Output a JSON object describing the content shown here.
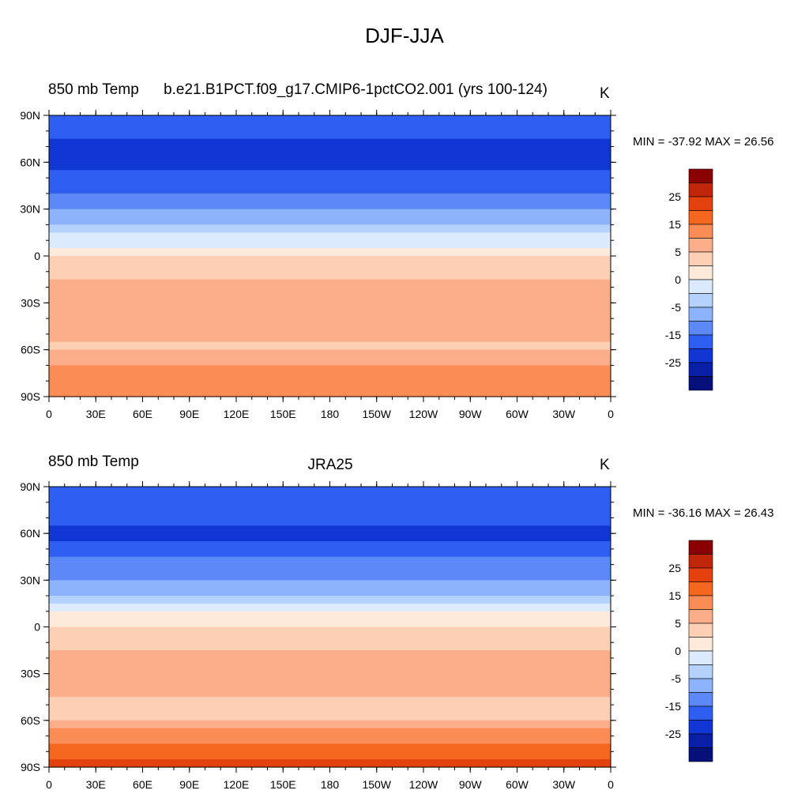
{
  "figure": {
    "title": "DJF-JJA"
  },
  "panels": [
    {
      "left_label": "850 mb Temp",
      "center_label": "b.e21.B1PCT.f09_g17.CMIP6-1pctCO2.001 (yrs 100-124)",
      "units": "K",
      "min_max": "MIN = -37.92 MAX =  26.56"
    },
    {
      "left_label": "850 mb Temp",
      "center_label": "JRA25",
      "units": "K",
      "min_max": "MIN = -36.16 MAX =  26.43"
    }
  ],
  "colorbar": {
    "tick_labels": [
      "25",
      "15",
      "5",
      "0",
      "-5",
      "-15",
      "-25"
    ],
    "colors": [
      "#8b0000",
      "#c0260a",
      "#e3420f",
      "#f5661e",
      "#fb8c55",
      "#fcae8a",
      "#fdd0b5",
      "#feeadb",
      "#dbeafd",
      "#b5d2fc",
      "#8db3fc",
      "#5c89f7",
      "#2f5ef2",
      "#1036d4",
      "#0a1fa8",
      "#05107a"
    ]
  },
  "chart_data": [
    {
      "type": "heatmap",
      "title": "850 mb Temp",
      "dataset": "b.e21.B1PCT.f09_g17.CMIP6-1pctCO2.001 (yrs 100-124)",
      "units": "K",
      "min": -37.92,
      "max": 26.56,
      "x_ticks": [
        "0",
        "30E",
        "60E",
        "90E",
        "120E",
        "150E",
        "180",
        "150W",
        "120W",
        "90W",
        "60W",
        "30W",
        "0"
      ],
      "y_ticks": [
        "90N",
        "60N",
        "30N",
        "0",
        "30S",
        "60S",
        "90S"
      ],
      "xlim": [
        0,
        360
      ],
      "ylim": [
        -90,
        90
      ],
      "zonal_profile": [
        {
          "lat": 90,
          "value": -18
        },
        {
          "lat": 75,
          "value": -20
        },
        {
          "lat": 60,
          "value": -22
        },
        {
          "lat": 45,
          "value": -17
        },
        {
          "lat": 30,
          "value": -11
        },
        {
          "lat": 15,
          "value": -3
        },
        {
          "lat": 0,
          "value": 2
        },
        {
          "lat": -15,
          "value": 5
        },
        {
          "lat": -30,
          "value": 7
        },
        {
          "lat": -45,
          "value": 6
        },
        {
          "lat": -60,
          "value": 4
        },
        {
          "lat": -75,
          "value": 12
        },
        {
          "lat": -90,
          "value": 14
        }
      ]
    },
    {
      "type": "heatmap",
      "title": "850 mb Temp",
      "dataset": "JRA25",
      "units": "K",
      "min": -36.16,
      "max": 26.43,
      "x_ticks": [
        "0",
        "30E",
        "60E",
        "90E",
        "120E",
        "150E",
        "180",
        "150W",
        "120W",
        "90W",
        "60W",
        "30W",
        "0"
      ],
      "y_ticks": [
        "90N",
        "60N",
        "30N",
        "0",
        "30S",
        "60S",
        "90S"
      ],
      "xlim": [
        0,
        360
      ],
      "ylim": [
        -90,
        90
      ],
      "zonal_profile": [
        {
          "lat": 90,
          "value": -15
        },
        {
          "lat": 75,
          "value": -19
        },
        {
          "lat": 60,
          "value": -21
        },
        {
          "lat": 45,
          "value": -16
        },
        {
          "lat": 30,
          "value": -10
        },
        {
          "lat": 15,
          "value": -2
        },
        {
          "lat": 0,
          "value": 2
        },
        {
          "lat": -15,
          "value": 5
        },
        {
          "lat": -30,
          "value": 7
        },
        {
          "lat": -45,
          "value": 5
        },
        {
          "lat": -60,
          "value": 4
        },
        {
          "lat": -75,
          "value": 17
        },
        {
          "lat": -90,
          "value": 22
        }
      ]
    }
  ],
  "colors": {
    "ocean_neutral": "#feeadb",
    "missing": "#ffffff",
    "coastline": "#000000"
  }
}
